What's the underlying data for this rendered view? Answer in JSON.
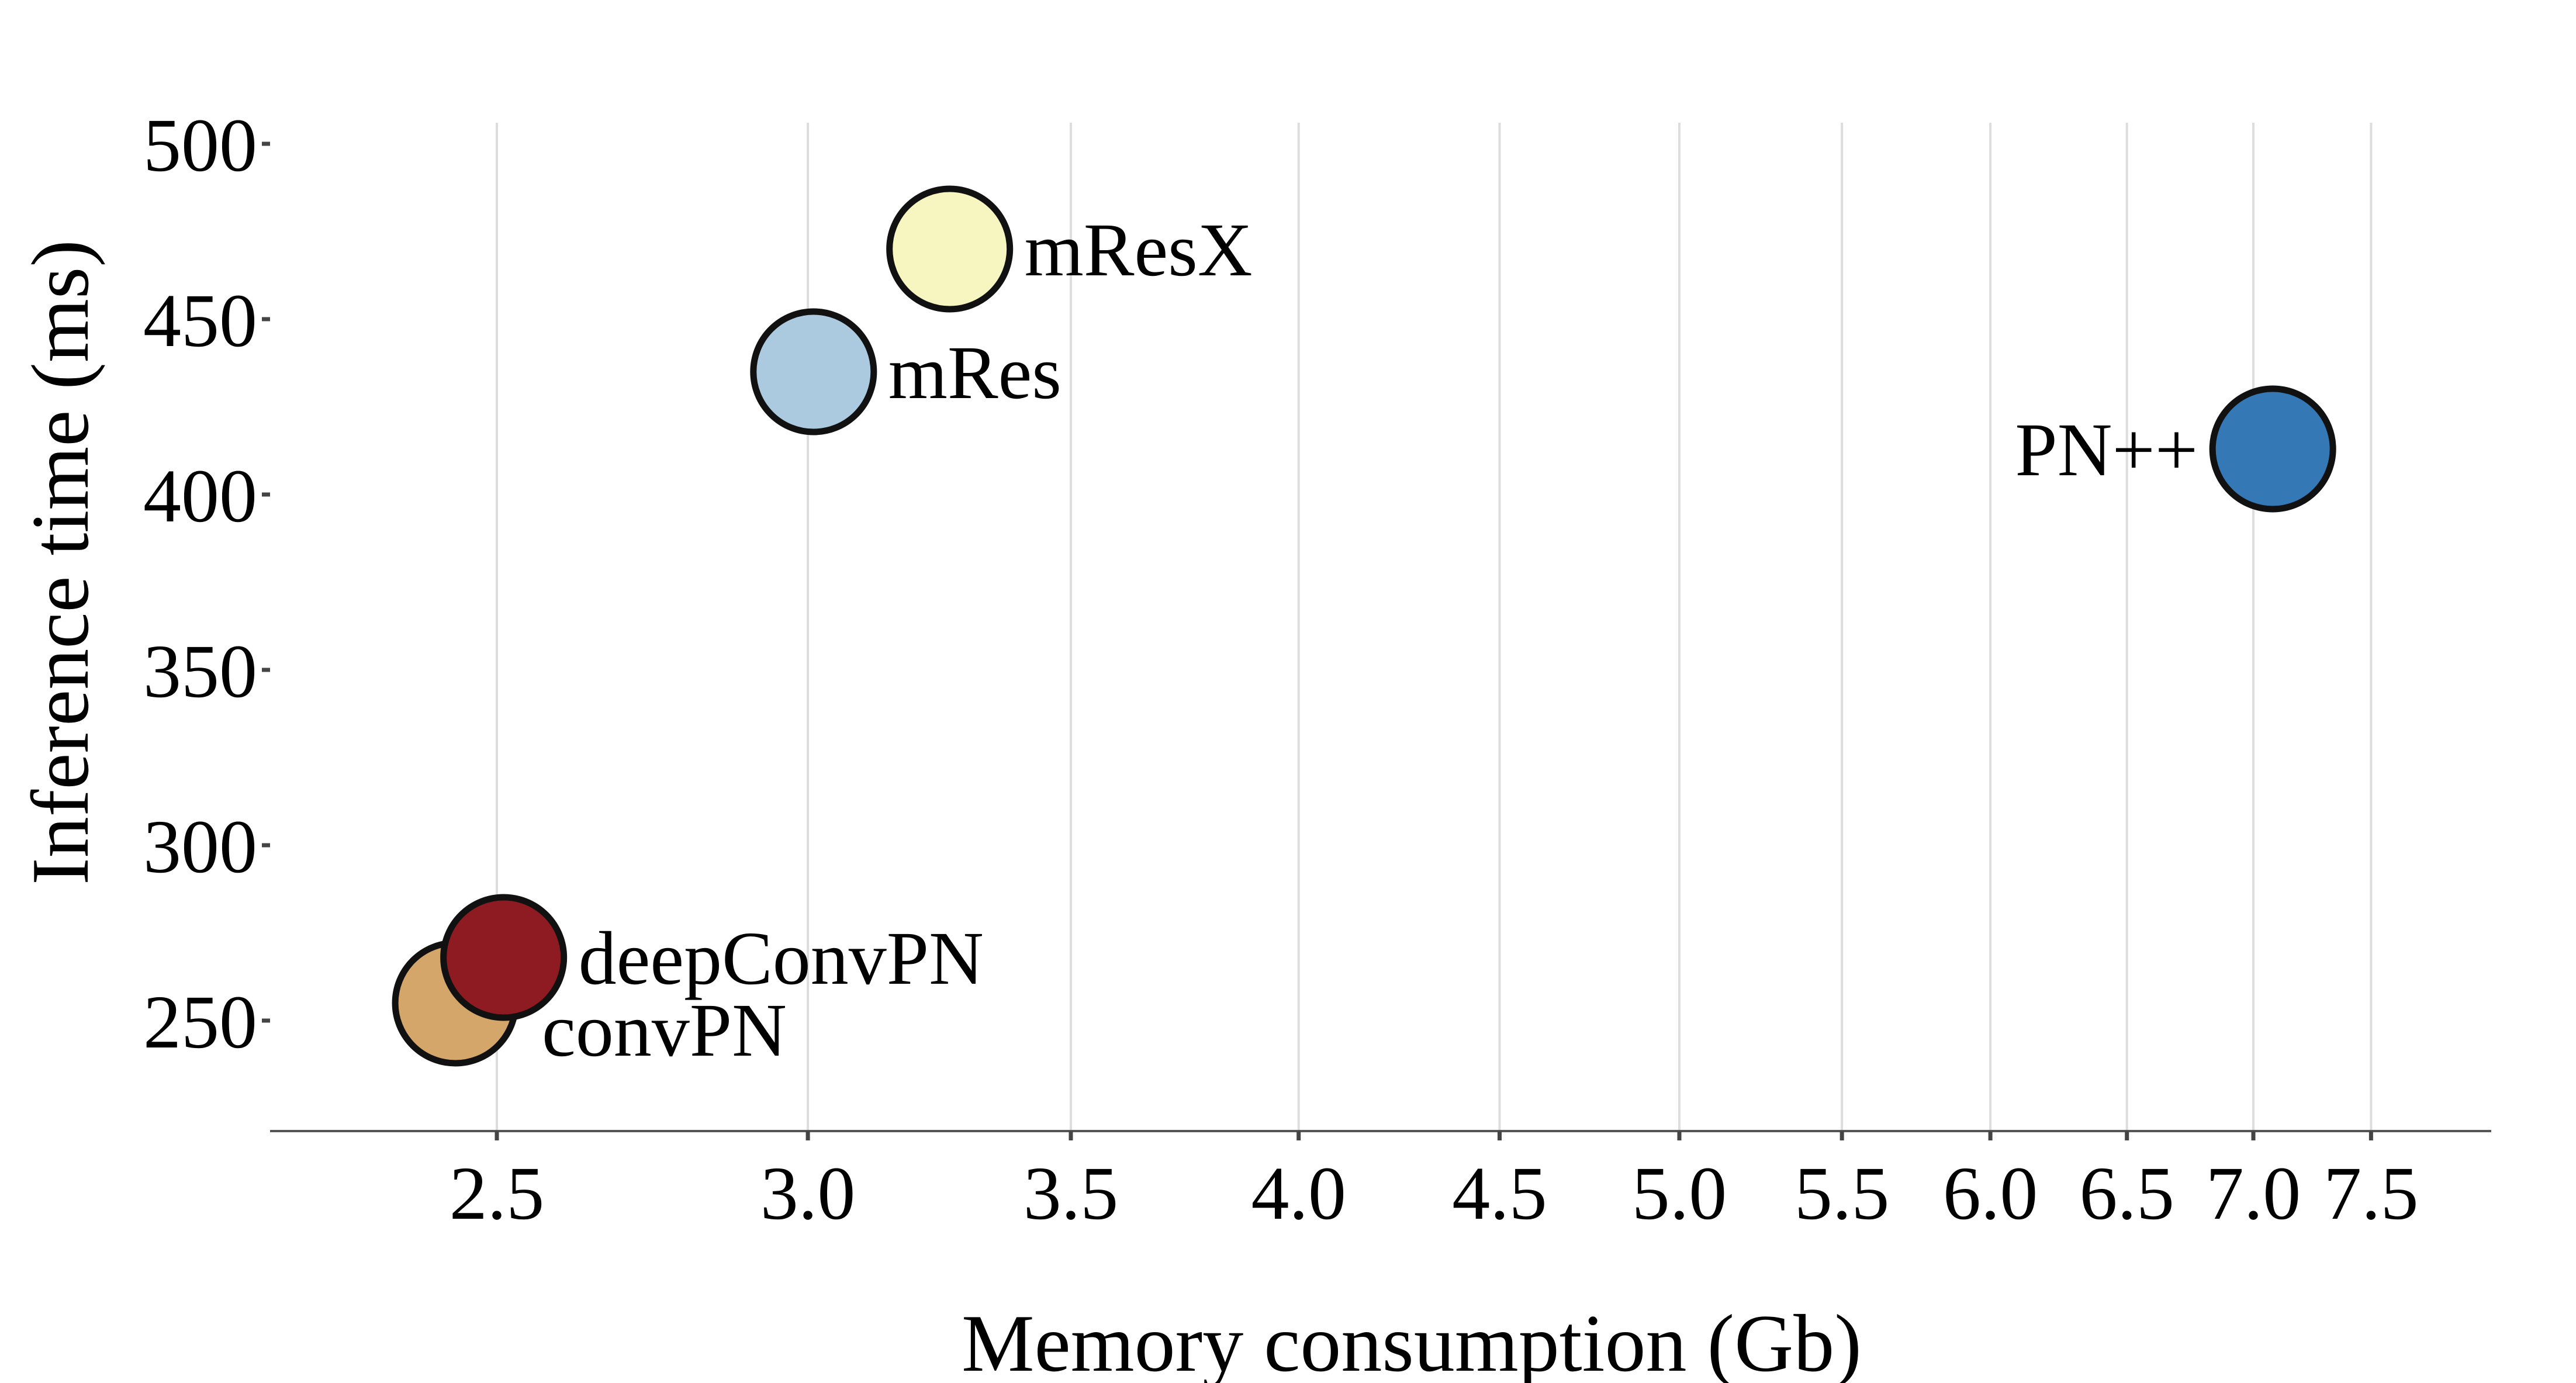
{
  "chart_data": {
    "type": "scatter",
    "title": "",
    "xlabel": "Memory consumption (Gb)",
    "ylabel": "Inference time (ms)",
    "xticks": [
      "2.5",
      "3.0",
      "3.5",
      "4.0",
      "4.5",
      "5.0",
      "5.5",
      "6.0",
      "6.5",
      "7.0",
      "7.5"
    ],
    "yticks": [
      "250",
      "300",
      "350",
      "400",
      "450",
      "500"
    ],
    "x_scale": "log",
    "grid": "vertical",
    "legend": "none",
    "points": [
      {
        "label": "convPN",
        "x": 2.44,
        "y": 255,
        "color": "#d4a66a",
        "label_side": "right-below"
      },
      {
        "label": "deepConvPN",
        "x": 2.51,
        "y": 268,
        "color": "#8e1a22",
        "label_side": "right"
      },
      {
        "label": "mRes",
        "x": 3.01,
        "y": 435,
        "color": "#abcae0",
        "label_side": "right"
      },
      {
        "label": "mResX",
        "x": 3.26,
        "y": 470,
        "color": "#f8f6c0",
        "label_side": "right"
      },
      {
        "label": "PN++",
        "x": 7.08,
        "y": 413,
        "color": "#3478b6",
        "label_side": "left"
      }
    ]
  }
}
